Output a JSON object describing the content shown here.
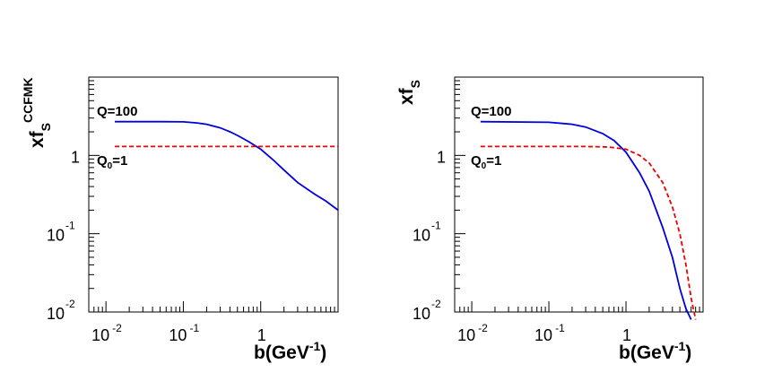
{
  "chart_data": [
    {
      "type": "line",
      "title": "",
      "xlabel": {
        "main": "b(GeV",
        "sup": "-1",
        "close": ")"
      },
      "ylabel": {
        "main": "xf",
        "sub": "S",
        "sup": "CCFMK"
      },
      "xscale": "log",
      "yscale": "log",
      "xlim": [
        0.006,
        10
      ],
      "ylim": [
        0.01,
        10
      ],
      "x_ticks": [
        {
          "base": "10",
          "exp": "-2"
        },
        {
          "base": "10",
          "exp": "-1"
        },
        {
          "base": "1",
          "exp": ""
        }
      ],
      "y_ticks": [
        {
          "base": "10",
          "exp": "-2"
        },
        {
          "base": "10",
          "exp": "-1"
        },
        {
          "base": "1",
          "exp": ""
        }
      ],
      "series": [
        {
          "label": {
            "main": "Q=100",
            "sub": "",
            "tail": ""
          },
          "color": "#0000dd",
          "style": "solid",
          "x": [
            0.013,
            0.05,
            0.1,
            0.15,
            0.2,
            0.3,
            0.4,
            0.5,
            0.7,
            1.0,
            1.5,
            2,
            3,
            5,
            7,
            10
          ],
          "y": [
            2.7,
            2.7,
            2.68,
            2.6,
            2.5,
            2.25,
            2.0,
            1.8,
            1.5,
            1.2,
            0.85,
            0.65,
            0.45,
            0.32,
            0.26,
            0.2
          ]
        },
        {
          "label": {
            "main": "Q",
            "sub": "0",
            "tail": "=1"
          },
          "color": "#ee0000",
          "style": "dashed",
          "x": [
            0.013,
            10
          ],
          "y": [
            1.3,
            1.3
          ]
        }
      ]
    },
    {
      "type": "line",
      "title": "",
      "xlabel": {
        "main": "b(GeV",
        "sup": "-1",
        "close": ")"
      },
      "ylabel": {
        "main": "xf",
        "sub": "S",
        "sup": ""
      },
      "xscale": "log",
      "yscale": "log",
      "xlim": [
        0.006,
        10
      ],
      "ylim": [
        0.01,
        10
      ],
      "x_ticks": [
        {
          "base": "10",
          "exp": "-2"
        },
        {
          "base": "10",
          "exp": "-1"
        },
        {
          "base": "1",
          "exp": ""
        }
      ],
      "y_ticks": [
        {
          "base": "10",
          "exp": "-2"
        },
        {
          "base": "10",
          "exp": "-1"
        },
        {
          "base": "1",
          "exp": ""
        }
      ],
      "series": [
        {
          "label": {
            "main": "Q=100",
            "sub": "",
            "tail": ""
          },
          "color": "#0000dd",
          "style": "solid",
          "x": [
            0.013,
            0.1,
            0.2,
            0.3,
            0.5,
            0.7,
            1.0,
            1.5,
            2.0,
            3.0,
            4.0,
            5.0,
            6.0,
            7.0
          ],
          "y": [
            2.7,
            2.65,
            2.5,
            2.3,
            1.9,
            1.55,
            1.1,
            0.6,
            0.35,
            0.12,
            0.05,
            0.02,
            0.011,
            0.008
          ]
        },
        {
          "label": {
            "main": "Q",
            "sub": "0",
            "tail": "=1"
          },
          "color": "#ee0000",
          "style": "dashed",
          "x": [
            0.013,
            0.3,
            0.6,
            1.0,
            1.5,
            2.0,
            3.0,
            4.0,
            5.0,
            6.0,
            7.0,
            8.0
          ],
          "y": [
            1.3,
            1.3,
            1.28,
            1.2,
            1.0,
            0.8,
            0.45,
            0.22,
            0.1,
            0.04,
            0.015,
            0.008
          ]
        }
      ]
    }
  ]
}
